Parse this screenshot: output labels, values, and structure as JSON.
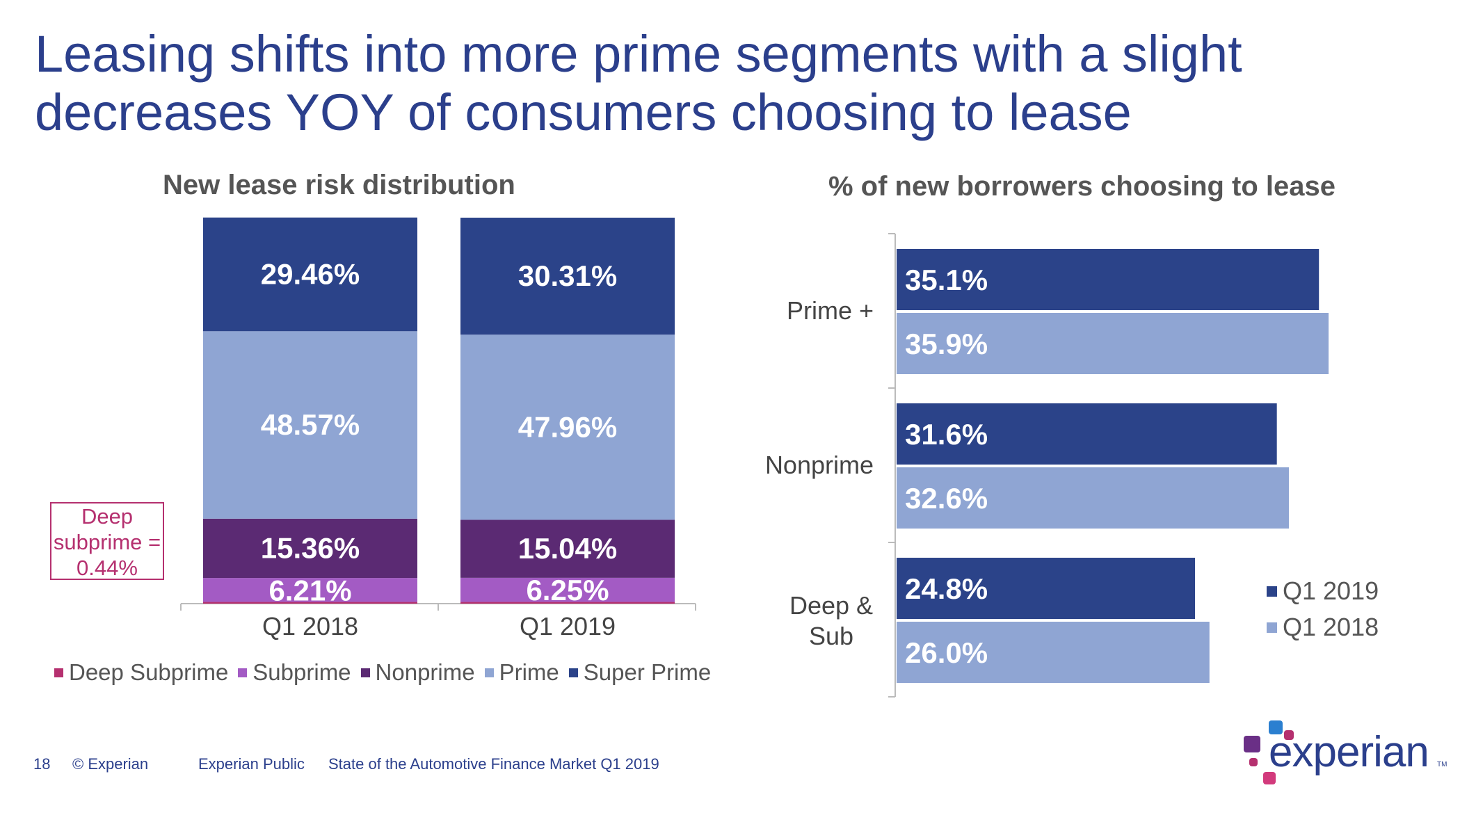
{
  "title": {
    "line1": "Leasing shifts into more prime segments with a slight",
    "line2": "decreases YOY of consumers choosing to lease"
  },
  "colors": {
    "deep_subprime": "#b5306f",
    "subprime": "#a35bc4",
    "nonprime": "#5b2a73",
    "prime": "#8fa5d3",
    "super_prime": "#2b4389",
    "q1_2019": "#2b4389",
    "q1_2018": "#8fa5d3",
    "title": "#2b3f8c"
  },
  "chart_data": [
    {
      "type": "bar",
      "stacked": true,
      "title": "New lease risk distribution",
      "categories": [
        "Q1 2018",
        "Q1 2019"
      ],
      "series": [
        {
          "name": "Deep Subprime",
          "values": [
            0.44,
            0.44
          ],
          "labels": [
            "",
            ""
          ]
        },
        {
          "name": "Subprime",
          "values": [
            6.21,
            6.25
          ],
          "labels": [
            "6.21%",
            "6.25%"
          ]
        },
        {
          "name": "Nonprime",
          "values": [
            15.36,
            15.04
          ],
          "labels": [
            "15.36%",
            "15.04%"
          ]
        },
        {
          "name": "Prime",
          "values": [
            48.57,
            47.96
          ],
          "labels": [
            "48.57%",
            "47.96%"
          ]
        },
        {
          "name": "Super Prime",
          "values": [
            29.46,
            30.31
          ],
          "labels": [
            "29.46%",
            "30.31%"
          ]
        }
      ],
      "ylim": [
        0,
        100
      ],
      "legend": "bottom",
      "annotation": {
        "line1": "Deep",
        "line2": "subprime =",
        "line3": "0.44%"
      }
    },
    {
      "type": "bar",
      "orientation": "horizontal",
      "title": "% of new borrowers choosing to lease",
      "categories": [
        {
          "line1": "Prime +",
          "line2": ""
        },
        {
          "line1": "Nonprime",
          "line2": ""
        },
        {
          "line1": "Deep &",
          "line2": "Sub"
        }
      ],
      "series": [
        {
          "name": "Q1 2019",
          "values": [
            35.1,
            31.6,
            24.8
          ],
          "labels": [
            "35.1%",
            "31.6%",
            "24.8%"
          ]
        },
        {
          "name": "Q1 2018",
          "values": [
            35.9,
            32.6,
            26.0
          ],
          "labels": [
            "35.9%",
            "32.6%",
            "26.0%"
          ]
        }
      ],
      "xlim": [
        0,
        40
      ],
      "legend": "right"
    }
  ],
  "footer": {
    "page": "18",
    "copyright": "© Experian",
    "classification": "Experian Public",
    "doc_title": "State of the Automotive Finance Market Q1 2019"
  },
  "logo": {
    "text": "experian",
    "tm": "TM"
  }
}
